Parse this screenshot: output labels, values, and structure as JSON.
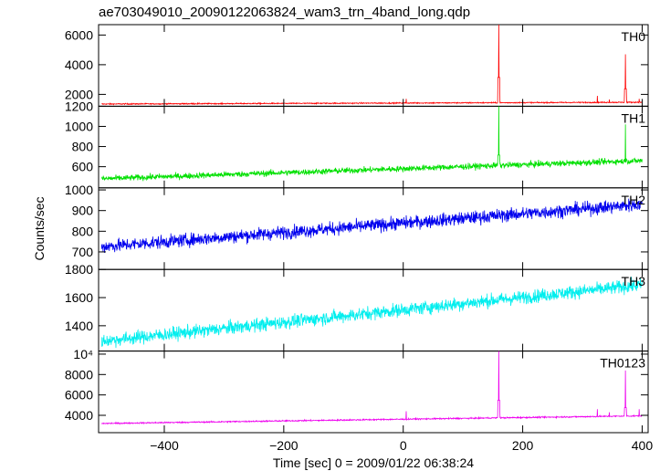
{
  "chart_data": {
    "type": "line",
    "title": "ae703049010_20090122063824_wam3_trn_4band_long.qdp",
    "xlabel": "Time [sec] 0 = 2009/01/22 06:38:24",
    "ylabel": "Counts/sec",
    "xlim": [
      -510,
      410
    ],
    "x_ticks": [
      -400,
      -200,
      0,
      200,
      400
    ],
    "grid": false,
    "panels": [
      {
        "name": "TH0",
        "color": "#ff0000",
        "ylim": [
          1200,
          6700
        ],
        "y_ticks": [
          1200,
          2000,
          4000,
          6000
        ],
        "y_tick_labels": [
          "1200",
          "2000",
          "4000",
          "6000"
        ],
        "baseline_start": 1350,
        "baseline_end": 1470,
        "noise": 35,
        "spikes": [
          {
            "x": 5,
            "y": 1700
          },
          {
            "x": 160,
            "y": 6700
          },
          {
            "x": 325,
            "y": 1900
          },
          {
            "x": 345,
            "y": 1650
          },
          {
            "x": 372,
            "y": 4700
          },
          {
            "x": 395,
            "y": 1700
          }
        ]
      },
      {
        "name": "TH1",
        "color": "#00e000",
        "ylim": [
          390,
          1200
        ],
        "y_ticks": [
          600,
          800,
          1000
        ],
        "y_tick_labels": [
          "600",
          "800",
          "1000"
        ],
        "baseline_start": 480,
        "baseline_end": 660,
        "noise": 28,
        "spikes": [
          {
            "x": 160,
            "y": 1200
          },
          {
            "x": 372,
            "y": 1020
          }
        ]
      },
      {
        "name": "TH2",
        "color": "#0000ee",
        "ylim": [
          615,
          1010
        ],
        "y_ticks": [
          700,
          800,
          900,
          1000
        ],
        "y_tick_labels": [
          "700",
          "800",
          "900",
          "1000"
        ],
        "baseline_start": 725,
        "baseline_end": 930,
        "noise": 30,
        "spikes": []
      },
      {
        "name": "TH3",
        "color": "#00eeee",
        "ylim": [
          1220,
          1800
        ],
        "y_ticks": [
          1400,
          1600,
          1800
        ],
        "y_tick_labels": [
          "1400",
          "1600",
          "1800"
        ],
        "baseline_start": 1290,
        "baseline_end": 1690,
        "noise": 45,
        "spikes": []
      },
      {
        "name": "TH0123",
        "color": "#ee00ee",
        "ylim": [
          2300,
          10300
        ],
        "y_ticks": [
          4000,
          6000,
          8000,
          10000
        ],
        "y_tick_labels": [
          "4000",
          "6000",
          "8000",
          "10⁴"
        ],
        "baseline_start": 3200,
        "baseline_end": 3950,
        "noise": 60,
        "spikes": [
          {
            "x": 5,
            "y": 4400
          },
          {
            "x": 160,
            "y": 10300
          },
          {
            "x": 325,
            "y": 4600
          },
          {
            "x": 345,
            "y": 4300
          },
          {
            "x": 372,
            "y": 8400
          },
          {
            "x": 395,
            "y": 4600
          }
        ]
      }
    ]
  }
}
